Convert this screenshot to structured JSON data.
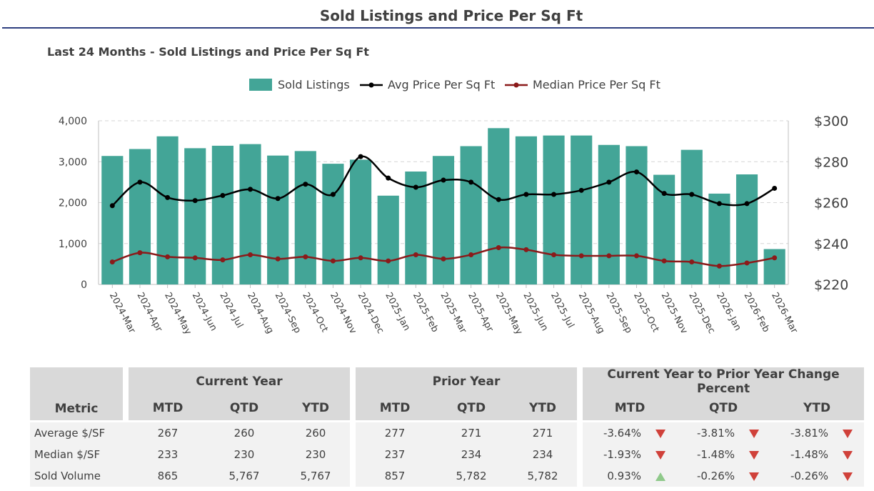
{
  "page": {
    "title": "Sold Listings and Price Per Sq Ft"
  },
  "colors": {
    "bars": "#43a597",
    "avg_line": "#000000",
    "median_line": "#8b1a1a",
    "grid": "#d6d6d6",
    "arrow_down": "#d0413a",
    "arrow_up": "#8fc98a"
  },
  "chart_data": {
    "type": "bar",
    "title": "Last 24 Months - Sold Listings and Price Per Sq Ft",
    "categories": [
      "2024-Mar",
      "2024-Apr",
      "2024-May",
      "2024-Jun",
      "2024-Jul",
      "2024-Aug",
      "2024-Sep",
      "2024-Oct",
      "2024-Nov",
      "2024-Dec",
      "2025-Jan",
      "2025-Feb",
      "2025-Mar",
      "2025-Apr",
      "2025-May",
      "2025-Jun",
      "2025-Jul",
      "2025-Aug",
      "2025-Sep",
      "2025-Oct",
      "2025-Nov",
      "2025-Dec",
      "2026-Jan",
      "2026-Feb",
      "2026-Mar"
    ],
    "series": [
      {
        "name": "Sold Listings",
        "type": "bar",
        "axis": "left",
        "values": [
          3140,
          3310,
          3620,
          3330,
          3390,
          3430,
          3150,
          3260,
          2950,
          3050,
          2170,
          2760,
          3140,
          3380,
          3820,
          3620,
          3640,
          3640,
          3410,
          3380,
          2680,
          3290,
          2220,
          2690,
          865
        ]
      },
      {
        "name": "Avg Price Per Sq Ft",
        "type": "line",
        "axis": "right",
        "values": [
          258.5,
          270,
          262.5,
          261,
          263.5,
          266.5,
          262,
          269,
          264,
          282.5,
          272,
          267.5,
          271,
          270,
          261.5,
          264,
          264,
          266,
          270,
          275,
          264.5,
          264,
          259.5,
          259.5,
          267
        ]
      },
      {
        "name": "Median Price Per Sq Ft",
        "type": "line",
        "axis": "right",
        "values": [
          231,
          235.5,
          233.5,
          233,
          232,
          234.5,
          232.5,
          233.5,
          231.5,
          233,
          231.5,
          234.5,
          232.5,
          234.5,
          238,
          237,
          234.5,
          234,
          234,
          234,
          231.5,
          231,
          229,
          230.5,
          233
        ]
      }
    ],
    "ylabel": "",
    "xlabel": "",
    "y_left": {
      "ylim": [
        0,
        4000
      ],
      "ticks": [
        "0",
        "1,000",
        "2,000",
        "3,000",
        "4,000"
      ]
    },
    "y_right": {
      "ylim": [
        220,
        300
      ],
      "ticks": [
        "$220",
        "$240",
        "$260",
        "$280",
        "$300"
      ]
    },
    "legend": {
      "placement": "top-center",
      "items": [
        "Sold Listings",
        "Avg Price Per Sq Ft",
        "Median Price Per Sq Ft"
      ]
    },
    "grid": true
  },
  "table": {
    "metric_header": "Metric",
    "groups": [
      "Current Year",
      "Prior Year",
      "Current Year to Prior Year Change Percent"
    ],
    "subheaders": [
      "MTD",
      "QTD",
      "YTD"
    ],
    "rows": [
      {
        "label": "Average $/SF",
        "current": [
          "267",
          "260",
          "260"
        ],
        "prior": [
          "277",
          "271",
          "271"
        ],
        "change": [
          {
            "value": "-3.64%",
            "dir": "down"
          },
          {
            "value": "-3.81%",
            "dir": "down"
          },
          {
            "value": "-3.81%",
            "dir": "down"
          }
        ]
      },
      {
        "label": "Median $/SF",
        "current": [
          "233",
          "230",
          "230"
        ],
        "prior": [
          "237",
          "234",
          "234"
        ],
        "change": [
          {
            "value": "-1.93%",
            "dir": "down"
          },
          {
            "value": "-1.48%",
            "dir": "down"
          },
          {
            "value": "-1.48%",
            "dir": "down"
          }
        ]
      },
      {
        "label": "Sold Volume",
        "current": [
          "865",
          "5,767",
          "5,767"
        ],
        "prior": [
          "857",
          "5,782",
          "5,782"
        ],
        "change": [
          {
            "value": "0.93%",
            "dir": "up"
          },
          {
            "value": "-0.26%",
            "dir": "down"
          },
          {
            "value": "-0.26%",
            "dir": "down"
          }
        ]
      }
    ]
  }
}
